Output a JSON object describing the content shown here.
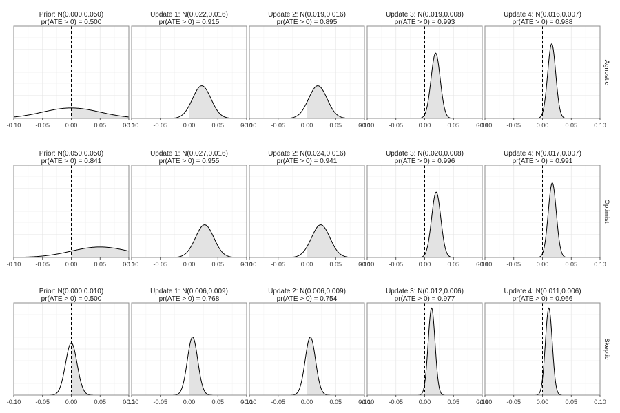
{
  "chart_data": {
    "type": "area",
    "layout": "facet grid",
    "xlim": [
      -0.1,
      0.1
    ],
    "x_ticks": [
      -0.1,
      -0.05,
      0.0,
      0.05,
      0.1
    ],
    "x_tick_labels": [
      "-0.10",
      "-0.05",
      "0.00",
      "0.05",
      "0.10"
    ],
    "reference_line_x": 0,
    "shade_region": "x > 0",
    "grid": true,
    "rows": [
      {
        "label": "Agnostic",
        "panels": [
          {
            "title": "Prior: N(0.000,0.050)",
            "subtitle": "pr(ATE > 0) = 0.500",
            "mean": 0.0,
            "sd": 0.05
          },
          {
            "title": "Update 1: N(0.022,0.016)",
            "subtitle": "pr(ATE > 0) = 0.915",
            "mean": 0.022,
            "sd": 0.016
          },
          {
            "title": "Update 2: N(0.019,0.016)",
            "subtitle": "pr(ATE > 0) = 0.895",
            "mean": 0.019,
            "sd": 0.016
          },
          {
            "title": "Update 3: N(0.019,0.008)",
            "subtitle": "pr(ATE > 0) = 0.993",
            "mean": 0.019,
            "sd": 0.008
          },
          {
            "title": "Update 4: N(0.016,0.007)",
            "subtitle": "pr(ATE > 0) = 0.988",
            "mean": 0.016,
            "sd": 0.007
          }
        ]
      },
      {
        "label": "Optimist",
        "panels": [
          {
            "title": "Prior: N(0.050,0.050)",
            "subtitle": "pr(ATE > 0) = 0.841",
            "mean": 0.05,
            "sd": 0.05
          },
          {
            "title": "Update 1: N(0.027,0.016)",
            "subtitle": "pr(ATE > 0) = 0.955",
            "mean": 0.027,
            "sd": 0.016
          },
          {
            "title": "Update 2: N(0.024,0.016)",
            "subtitle": "pr(ATE > 0) = 0.941",
            "mean": 0.024,
            "sd": 0.016
          },
          {
            "title": "Update 3: N(0.020,0.008)",
            "subtitle": "pr(ATE > 0) = 0.996",
            "mean": 0.02,
            "sd": 0.008
          },
          {
            "title": "Update 4: N(0.017,0.007)",
            "subtitle": "pr(ATE > 0) = 0.991",
            "mean": 0.017,
            "sd": 0.007
          }
        ]
      },
      {
        "label": "Skeptic",
        "panels": [
          {
            "title": "Prior: N(0.000,0.010)",
            "subtitle": "pr(ATE > 0) = 0.500",
            "mean": 0.0,
            "sd": 0.01
          },
          {
            "title": "Update 1: N(0.006,0.009)",
            "subtitle": "pr(ATE > 0) = 0.768",
            "mean": 0.006,
            "sd": 0.009
          },
          {
            "title": "Update 2: N(0.006,0.009)",
            "subtitle": "pr(ATE > 0) = 0.754",
            "mean": 0.006,
            "sd": 0.009
          },
          {
            "title": "Update 3: N(0.012,0.006)",
            "subtitle": "pr(ATE > 0) = 0.977",
            "mean": 0.012,
            "sd": 0.006
          },
          {
            "title": "Update 4: N(0.011,0.006)",
            "subtitle": "pr(ATE > 0) = 0.966",
            "mean": 0.011,
            "sd": 0.006
          }
        ]
      }
    ]
  },
  "colors": {
    "background": "#ffffff",
    "panel_border": "#8c8c8c",
    "grid_major": "#e6e6e6",
    "grid_minor": "#f3f3f3",
    "curve": "#000000",
    "shade_fill": "#e3e3e3",
    "reference_line": "#000000"
  }
}
